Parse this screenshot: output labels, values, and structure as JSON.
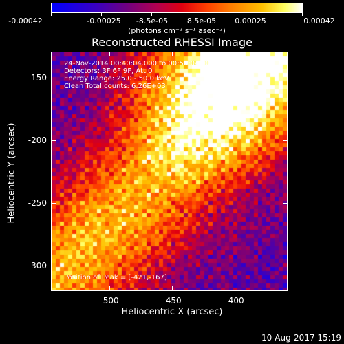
{
  "colorbar": {
    "tick_labels": [
      "-0.00042",
      "-0.00025",
      "-8.5e-05",
      "8.5e-05",
      "0.00025",
      "0.00042"
    ],
    "units": "(photons cm⁻² s⁻¹ asec⁻²)"
  },
  "title": "Reconstructed RHESSI Image",
  "info": {
    "line1": "24-Nov-2014 00:40:04.000 to 00:50:04.000",
    "line2": "Detectors: 3F 6F 9F, Att 0",
    "line3": "Energy Range: 25.0 - 50.0 keV",
    "line4": "Clean    Total counts: 6.26E+03",
    "peak": "Position of Peak = [-421,-167]"
  },
  "axes": {
    "xlabel": "Heliocentric X (arcsec)",
    "ylabel": "Heliocentric Y (arcsec)",
    "xticks": [
      "-500",
      "-450",
      "-400"
    ],
    "yticks": [
      "-150",
      "-200",
      "-250",
      "-300"
    ]
  },
  "datestamp": "10-Aug-2017 15:19"
}
